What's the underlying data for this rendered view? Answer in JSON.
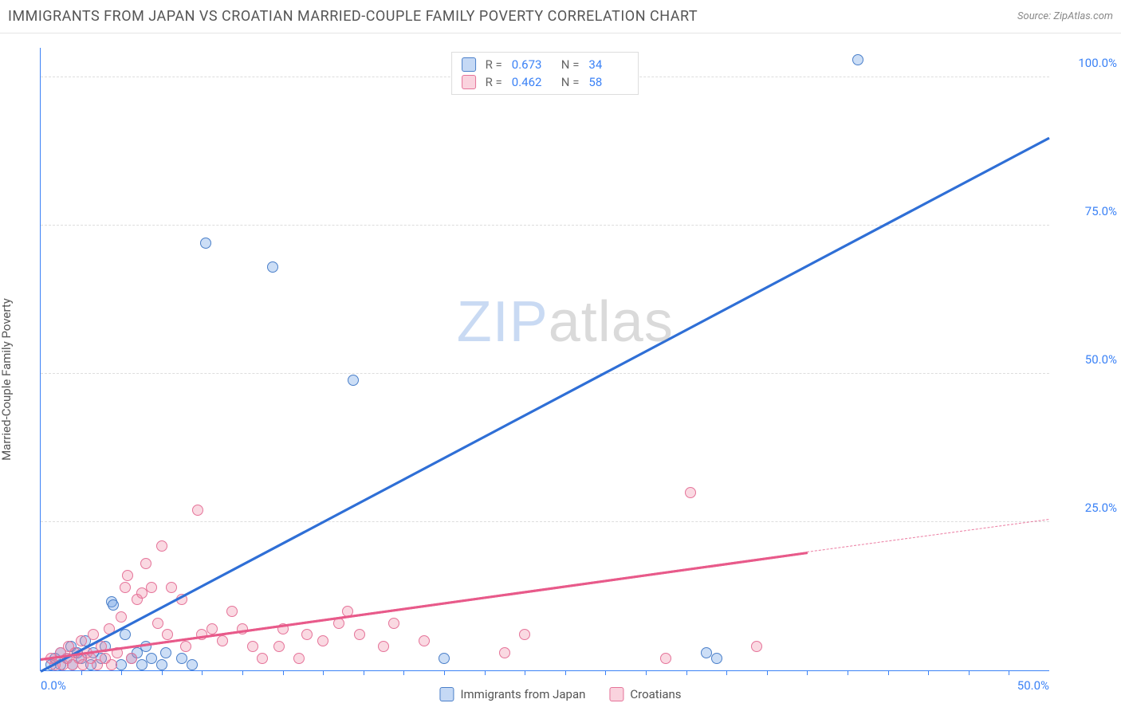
{
  "title": "IMMIGRANTS FROM JAPAN VS CROATIAN MARRIED-COUPLE FAMILY POVERTY CORRELATION CHART",
  "source": "Source: ZipAtlas.com",
  "ylabel": "Married-Couple Family Poverty",
  "watermark": {
    "part1": "ZIP",
    "part2": "atlas"
  },
  "chart": {
    "type": "scatter",
    "xlim": [
      0,
      50
    ],
    "ylim": [
      0,
      105
    ],
    "xticks": [
      0,
      50
    ],
    "xtick_labels": [
      "0.0%",
      "50.0%"
    ],
    "xticks_minor": [
      2,
      4,
      6,
      8,
      10,
      12,
      14,
      16,
      18,
      20,
      22,
      24,
      26,
      28,
      30,
      32,
      34,
      36,
      38,
      40,
      42,
      44,
      46,
      48
    ],
    "yticks": [
      25,
      50,
      75,
      100
    ],
    "ytick_labels": [
      "25.0%",
      "50.0%",
      "75.0%",
      "100.0%"
    ],
    "grid_color": "#dddddd",
    "axis_color": "#3b82f6",
    "background_color": "#ffffff",
    "series": [
      {
        "name": "Immigrants from Japan",
        "color_fill": "rgba(110,160,230,0.35)",
        "color_stroke": "#4a7fc9",
        "trend_color": "#2f6fd6",
        "R": "0.673",
        "N": "34",
        "trend": {
          "x1": 0,
          "y1": 0,
          "x2": 50,
          "y2": 90
        },
        "points": [
          [
            0.5,
            1
          ],
          [
            0.7,
            2
          ],
          [
            1,
            3
          ],
          [
            1,
            1
          ],
          [
            1.3,
            2
          ],
          [
            1.5,
            4
          ],
          [
            1.6,
            1
          ],
          [
            1.8,
            3
          ],
          [
            2,
            2
          ],
          [
            2.2,
            5
          ],
          [
            2.5,
            1
          ],
          [
            2.6,
            3
          ],
          [
            3,
            2
          ],
          [
            3.2,
            4
          ],
          [
            3.5,
            11.5
          ],
          [
            3.6,
            11
          ],
          [
            4,
            1
          ],
          [
            4.2,
            6
          ],
          [
            4.5,
            2
          ],
          [
            4.8,
            3
          ],
          [
            5,
            1
          ],
          [
            5.2,
            4
          ],
          [
            5.5,
            2
          ],
          [
            6,
            1
          ],
          [
            6.2,
            3
          ],
          [
            7,
            2
          ],
          [
            7.5,
            1
          ],
          [
            8.2,
            72
          ],
          [
            11.5,
            68
          ],
          [
            15.5,
            49
          ],
          [
            20,
            2
          ],
          [
            33,
            3
          ],
          [
            33.5,
            2
          ],
          [
            40.5,
            103
          ]
        ]
      },
      {
        "name": "Croatians",
        "color_fill": "rgba(240,130,160,0.30)",
        "color_stroke": "#e57399",
        "trend_color": "#e85a8a",
        "R": "0.462",
        "N": "58",
        "trend": {
          "x1": 0,
          "y1": 2,
          "x2": 38,
          "y2": 20
        },
        "trend_ext": {
          "x1": 38,
          "y1": 20,
          "x2": 50,
          "y2": 25.5
        },
        "points": [
          [
            0.5,
            2
          ],
          [
            0.7,
            1
          ],
          [
            1,
            3
          ],
          [
            1.1,
            1
          ],
          [
            1.3,
            2
          ],
          [
            1.4,
            4
          ],
          [
            1.6,
            1
          ],
          [
            1.7,
            3
          ],
          [
            1.9,
            2
          ],
          [
            2,
            5
          ],
          [
            2.1,
            1
          ],
          [
            2.3,
            3
          ],
          [
            2.5,
            2
          ],
          [
            2.6,
            6
          ],
          [
            2.8,
            1
          ],
          [
            3,
            4
          ],
          [
            3.2,
            2
          ],
          [
            3.4,
            7
          ],
          [
            3.5,
            1
          ],
          [
            3.8,
            3
          ],
          [
            4,
            9
          ],
          [
            4.2,
            14
          ],
          [
            4.3,
            16
          ],
          [
            4.5,
            2
          ],
          [
            4.8,
            12
          ],
          [
            5,
            13
          ],
          [
            5.2,
            18
          ],
          [
            5.5,
            14
          ],
          [
            5.8,
            8
          ],
          [
            6,
            21
          ],
          [
            6.3,
            6
          ],
          [
            6.5,
            14
          ],
          [
            7,
            12
          ],
          [
            7.2,
            4
          ],
          [
            7.8,
            27
          ],
          [
            8,
            6
          ],
          [
            8.5,
            7
          ],
          [
            9,
            5
          ],
          [
            9.5,
            10
          ],
          [
            10,
            7
          ],
          [
            10.5,
            4
          ],
          [
            11,
            2
          ],
          [
            11.8,
            4
          ],
          [
            12,
            7
          ],
          [
            12.8,
            2
          ],
          [
            13.2,
            6
          ],
          [
            14,
            5
          ],
          [
            14.8,
            8
          ],
          [
            15.2,
            10
          ],
          [
            15.8,
            6
          ],
          [
            17,
            4
          ],
          [
            17.5,
            8
          ],
          [
            19,
            5
          ],
          [
            23,
            3
          ],
          [
            24,
            6
          ],
          [
            31,
            2
          ],
          [
            32.2,
            30
          ],
          [
            35.5,
            4
          ]
        ]
      }
    ]
  },
  "legend_bottom": [
    {
      "series": 0,
      "label": "Immigrants from Japan"
    },
    {
      "series": 1,
      "label": "Croatians"
    }
  ]
}
